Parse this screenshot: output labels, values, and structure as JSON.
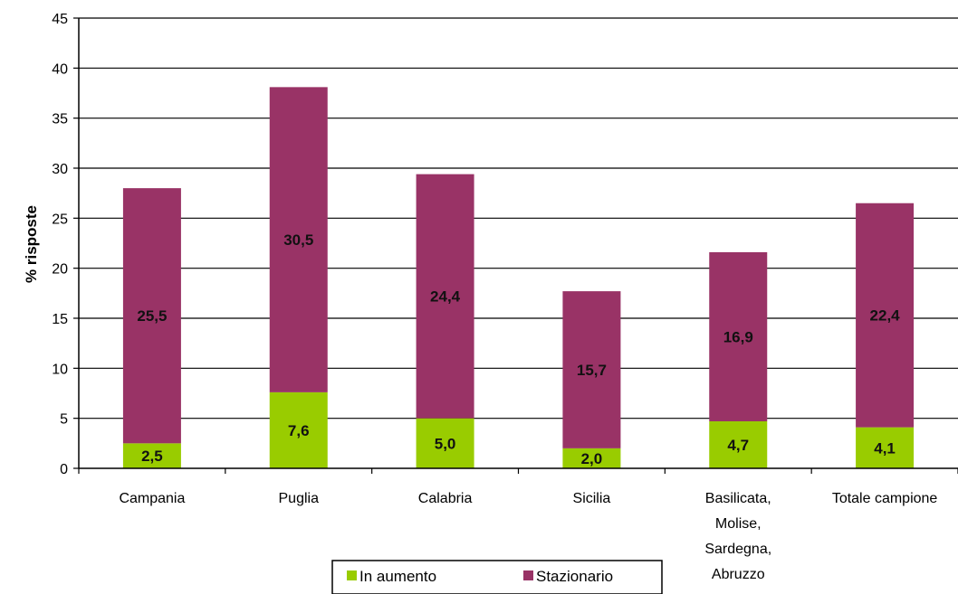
{
  "chart_data": {
    "type": "bar",
    "stacked": true,
    "ylabel": "% risposte",
    "ylim": [
      0,
      45
    ],
    "ytick_step": 5,
    "grid": "horizontal",
    "legend_position": "bottom",
    "categories": [
      [
        "Campania"
      ],
      [
        "Puglia"
      ],
      [
        "Calabria"
      ],
      [
        "Sicilia"
      ],
      [
        "Basilicata,",
        "Molise,",
        "Sardegna,",
        "Abruzzo"
      ],
      [
        "Totale campione"
      ]
    ],
    "series": [
      {
        "name": "In aumento",
        "color": "#99cc00",
        "values": [
          2.5,
          7.6,
          5.0,
          2.0,
          4.7,
          4.1
        ],
        "labels": [
          "2,5",
          "7,6",
          "5,0",
          "2,0",
          "4,7",
          "4,1"
        ]
      },
      {
        "name": "Stazionario",
        "color": "#993366",
        "values": [
          25.5,
          30.5,
          24.4,
          15.7,
          16.9,
          22.4
        ],
        "labels": [
          "25,5",
          "30,5",
          "24,4",
          "15,7",
          "16,9",
          "22,4"
        ]
      }
    ]
  }
}
